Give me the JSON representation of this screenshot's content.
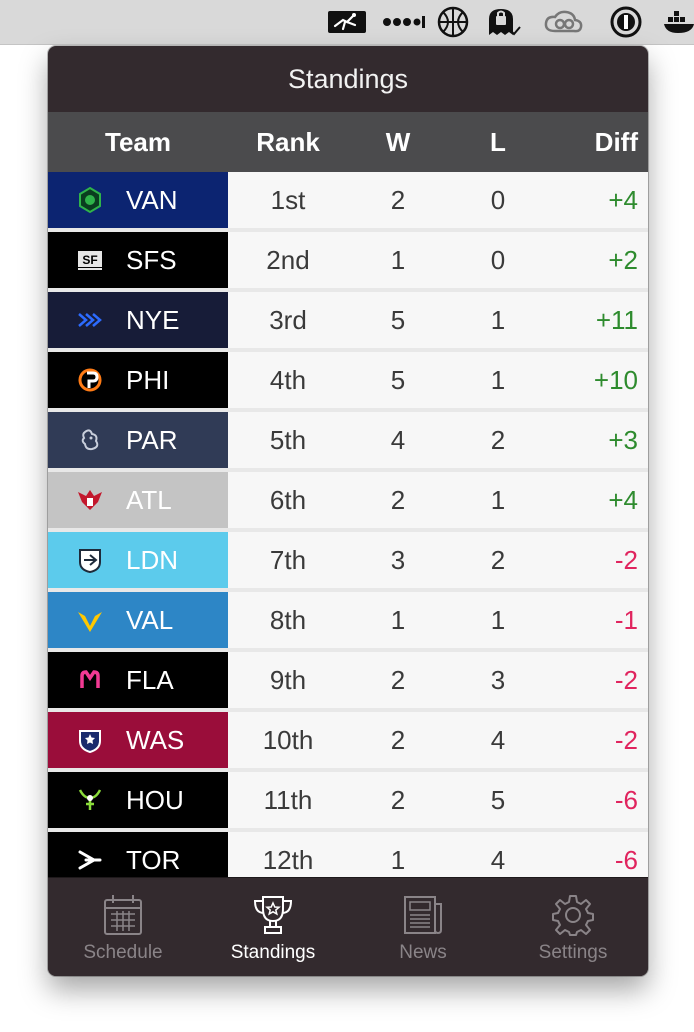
{
  "window": {
    "title": "Standings"
  },
  "menubar": {
    "icons": [
      "runner-icon",
      "signal-dots-icon",
      "basketball-icon",
      "ghost-lock-icon",
      "creative-cloud-icon",
      "onepassword-icon",
      "docker-icon"
    ]
  },
  "table": {
    "headers": {
      "team": "Team",
      "rank": "Rank",
      "w": "W",
      "l": "L",
      "diff": "Diff"
    },
    "rows": [
      {
        "abbr": "VAN",
        "rank": "1st",
        "w": "2",
        "l": "0",
        "diff": "+4",
        "team_color": "#0c2471",
        "logo": "van-logo-icon",
        "logo_color": "#2fb34a"
      },
      {
        "abbr": "SFS",
        "rank": "2nd",
        "w": "1",
        "l": "0",
        "diff": "+2",
        "team_color": "#000000",
        "logo": "sfs-logo-icon",
        "logo_color": "#e6e6e6"
      },
      {
        "abbr": "NYE",
        "rank": "3rd",
        "w": "5",
        "l": "1",
        "diff": "+11",
        "team_color": "#171c38",
        "logo": "nye-logo-icon",
        "logo_color": "#2c6bff"
      },
      {
        "abbr": "PHI",
        "rank": "4th",
        "w": "5",
        "l": "1",
        "diff": "+10",
        "team_color": "#000000",
        "logo": "phi-logo-icon",
        "logo_color": "#ff7b15"
      },
      {
        "abbr": "PAR",
        "rank": "5th",
        "w": "4",
        "l": "2",
        "diff": "+3",
        "team_color": "#303b56",
        "logo": "par-logo-icon",
        "logo_color": "#c9cfdc"
      },
      {
        "abbr": "ATL",
        "rank": "6th",
        "w": "2",
        "l": "1",
        "diff": "+4",
        "team_color": "#c4c4c4",
        "logo": "atl-logo-icon",
        "logo_color": "#c3172c"
      },
      {
        "abbr": "LDN",
        "rank": "7th",
        "w": "3",
        "l": "2",
        "diff": "-2",
        "team_color": "#5ccbec",
        "logo": "ldn-logo-icon",
        "logo_color": "#1e2a3a"
      },
      {
        "abbr": "VAL",
        "rank": "8th",
        "w": "1",
        "l": "1",
        "diff": "-1",
        "team_color": "#2d86c6",
        "logo": "val-logo-icon",
        "logo_color": "#ffc800"
      },
      {
        "abbr": "FLA",
        "rank": "9th",
        "w": "2",
        "l": "3",
        "diff": "-2",
        "team_color": "#000000",
        "logo": "fla-logo-icon",
        "logo_color": "#f23a94"
      },
      {
        "abbr": "WAS",
        "rank": "10th",
        "w": "2",
        "l": "4",
        "diff": "-2",
        "team_color": "#9a0d3a",
        "logo": "was-logo-icon",
        "logo_color": "#ffffff"
      },
      {
        "abbr": "HOU",
        "rank": "11th",
        "w": "2",
        "l": "5",
        "diff": "-6",
        "team_color": "#000000",
        "logo": "hou-logo-icon",
        "logo_color": "#8bdc3a"
      },
      {
        "abbr": "TOR",
        "rank": "12th",
        "w": "1",
        "l": "4",
        "diff": "-6",
        "team_color": "#000000",
        "logo": "tor-logo-icon",
        "logo_color": "#ffffff"
      }
    ]
  },
  "tabs": [
    {
      "label": "Schedule",
      "icon": "calendar-icon",
      "active": false
    },
    {
      "label": "Standings",
      "icon": "trophy-icon",
      "active": true
    },
    {
      "label": "News",
      "icon": "newspaper-icon",
      "active": false
    },
    {
      "label": "Settings",
      "icon": "gear-icon",
      "active": false
    }
  ],
  "colors": {
    "positive_diff": "#2e8b2e",
    "negative_diff": "#e0245e",
    "popover_bg": "#332a2e",
    "header_bg": "#4b4b4d"
  }
}
